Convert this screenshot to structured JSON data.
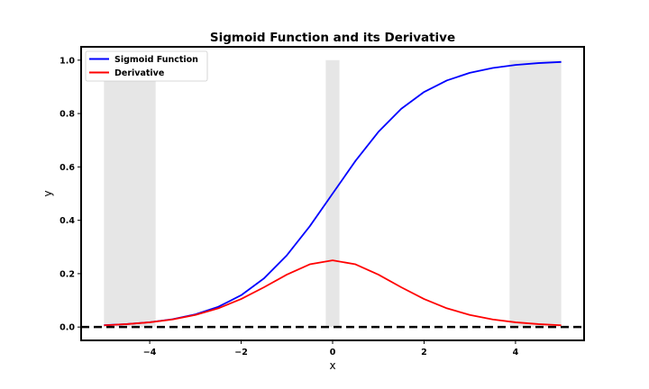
{
  "chart_data": {
    "type": "line",
    "title": "Sigmoid Function and its Derivative",
    "xlabel": "x",
    "ylabel": "y",
    "xlim": [
      -5.5,
      5.5
    ],
    "ylim": [
      -0.05,
      1.05
    ],
    "xticks": [
      -4,
      -2,
      0,
      2,
      4
    ],
    "xtick_labels": [
      "−4",
      "−2",
      "0",
      "2",
      "4"
    ],
    "yticks": [
      0.0,
      0.2,
      0.4,
      0.6,
      0.8,
      1.0
    ],
    "ytick_labels": [
      "0.0",
      "0.2",
      "0.4",
      "0.6",
      "0.8",
      "1.0"
    ],
    "grid": false,
    "legend_position": "upper-left",
    "series": [
      {
        "name": "Sigmoid Function",
        "color": "#0000ff",
        "x": [
          -5,
          -4.5,
          -4,
          -3.5,
          -3,
          -2.5,
          -2,
          -1.5,
          -1,
          -0.5,
          0,
          0.5,
          1,
          1.5,
          2,
          2.5,
          3,
          3.5,
          4,
          4.5,
          5
        ],
        "y": [
          0.0067,
          0.011,
          0.018,
          0.0293,
          0.0474,
          0.0759,
          0.1192,
          0.1824,
          0.2689,
          0.3775,
          0.5,
          0.6225,
          0.7311,
          0.8176,
          0.8808,
          0.9241,
          0.9526,
          0.9707,
          0.982,
          0.989,
          0.9933
        ]
      },
      {
        "name": "Derivative",
        "color": "#ff0000",
        "x": [
          -5,
          -4.5,
          -4,
          -3.5,
          -3,
          -2.5,
          -2,
          -1.5,
          -1,
          -0.5,
          0,
          0.5,
          1,
          1.5,
          2,
          2.5,
          3,
          3.5,
          4,
          4.5,
          5
        ],
        "y": [
          0.0066,
          0.0109,
          0.0177,
          0.0285,
          0.0452,
          0.0701,
          0.105,
          0.1491,
          0.1966,
          0.235,
          0.25,
          0.235,
          0.1966,
          0.1491,
          0.105,
          0.0701,
          0.0452,
          0.0285,
          0.0177,
          0.0109,
          0.0066
        ]
      }
    ],
    "shaded_regions": [
      {
        "x0": -5,
        "x1": -3.87,
        "y0": 0,
        "y1": 1,
        "color": "#e6e6e6"
      },
      {
        "x0": -0.15,
        "x1": 0.15,
        "y0": 0,
        "y1": 1,
        "color": "#e6e6e6"
      },
      {
        "x0": 3.87,
        "x1": 5,
        "y0": 0,
        "y1": 1,
        "color": "#e6e6e6"
      }
    ],
    "reference_line": {
      "y": 0,
      "color": "#000000",
      "style": "dashed"
    }
  }
}
